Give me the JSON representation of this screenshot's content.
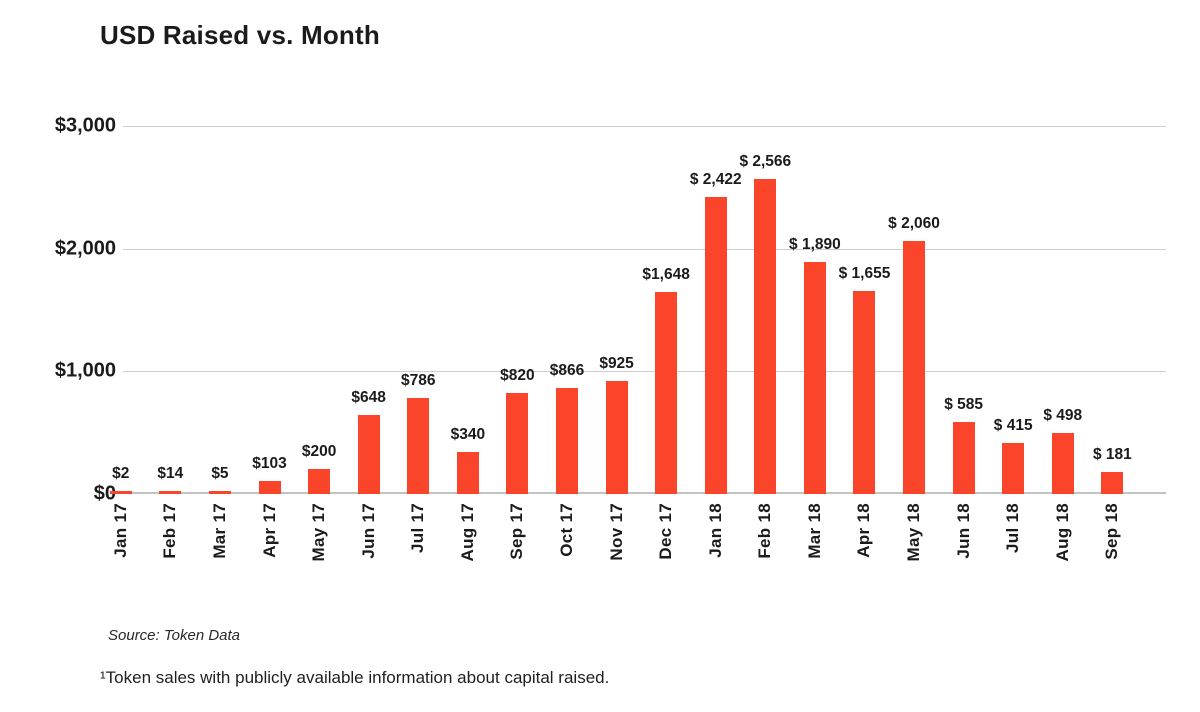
{
  "title": "USD Raised vs. Month",
  "source": "Source: Token Data",
  "footnote": "¹Token sales with publicly available information about capital raised.",
  "colors": {
    "bar": "#FA452B",
    "gridline": "#CECECE",
    "baseline": "#C2C2C2",
    "text": "#1B1B1B"
  },
  "chart_data": {
    "type": "bar",
    "title": "USD Raised vs. Month",
    "xlabel": "",
    "ylabel": "",
    "categories": [
      "Jan 17",
      "Feb 17",
      "Mar 17",
      "Apr 17",
      "May 17",
      "Jun 17",
      "Jul 17",
      "Aug 17",
      "Sep 17",
      "Oct 17",
      "Nov 17",
      "Dec 17",
      "Jan 18",
      "Feb 18",
      "Mar 18",
      "Apr 18",
      "May 18",
      "Jun 18",
      "Jul 18",
      "Aug 18",
      "Sep 18"
    ],
    "values": [
      2,
      14,
      5,
      103,
      200,
      648,
      786,
      340,
      820,
      866,
      925,
      1648,
      2422,
      2566,
      1890,
      1655,
      2060,
      585,
      415,
      498,
      181
    ],
    "value_labels": [
      "$2",
      "$14",
      "$5",
      "$103",
      "$200",
      "$648",
      "$786",
      "$340",
      "$820",
      "$866",
      "$925",
      "$1,648",
      "$ 2,422",
      "$ 2,566",
      "$ 1,890",
      "$ 1,655",
      "$ 2,060",
      "$ 585",
      "$ 415",
      "$ 498",
      "$ 181"
    ],
    "ylim": [
      0,
      3000
    ],
    "y_ticks": [
      {
        "value": 0,
        "label": "$0"
      },
      {
        "value": 1000,
        "label": "$1,000"
      },
      {
        "value": 2000,
        "label": "$2,000"
      },
      {
        "value": 3000,
        "label": "$3,000"
      }
    ],
    "grid": "horizontal",
    "legend": "none",
    "x_tick_rotation": 90
  }
}
